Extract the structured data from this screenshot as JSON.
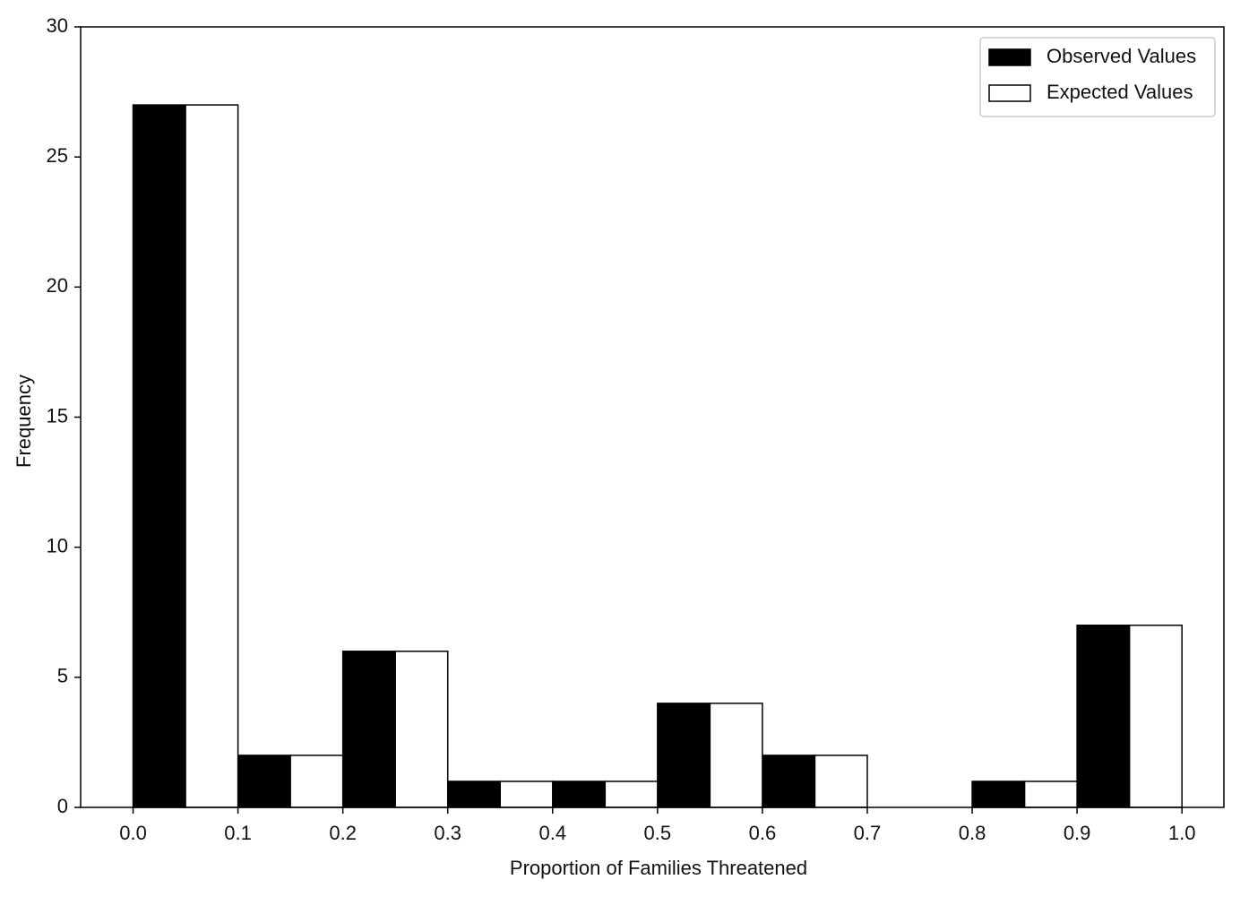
{
  "chart_data": {
    "type": "histogram",
    "xlabel": "Proportion of Families Threatened",
    "ylabel": "Frequency",
    "bins": [
      {
        "value": 0,
        "label": "0.0"
      },
      0.1,
      0.2,
      0.3,
      0.4,
      0.5,
      0.6,
      0.7,
      0.8,
      0.9,
      {
        "value": 1,
        "label": "1.0"
      }
    ],
    "series": [
      {
        "name": "Observed Values",
        "color": "#000000",
        "values": [
          27,
          2,
          6,
          1,
          1,
          4,
          2,
          0,
          1,
          7
        ]
      },
      {
        "name": "Expected Values",
        "color": "#ffffff",
        "values": [
          27,
          2,
          6,
          1,
          1,
          4,
          2,
          0,
          1,
          7
        ]
      }
    ],
    "xlim": [
      -0.05,
      1.04
    ],
    "ylim": [
      0,
      30
    ],
    "xticks": [
      {
        "value": 0,
        "label": "0.0"
      },
      0.1,
      0.2,
      0.3,
      0.4,
      0.5,
      0.6,
      0.7,
      0.8,
      0.9,
      {
        "value": 1,
        "label": "1.0"
      }
    ],
    "yticks": [
      0,
      5,
      10,
      15,
      20,
      25,
      30
    ],
    "legend": "upper right",
    "grid": false
  }
}
